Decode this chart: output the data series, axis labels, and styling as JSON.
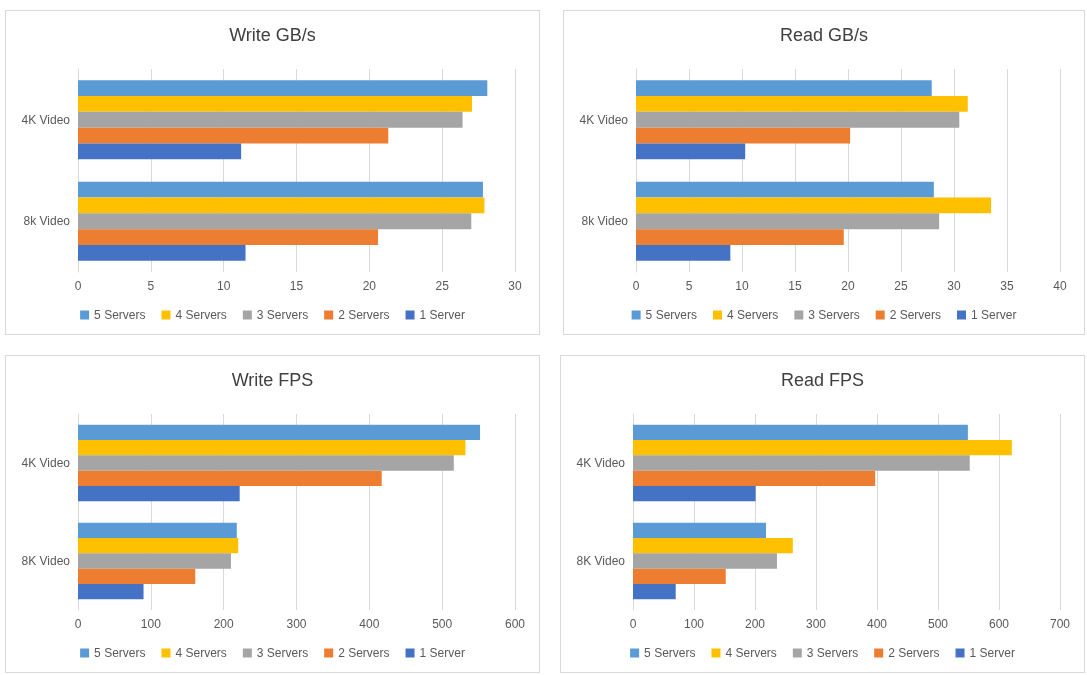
{
  "chart_data": [
    {
      "type": "bar",
      "orientation": "horizontal",
      "title": "Write GB/s",
      "categories": [
        "4K Video",
        "8k Video"
      ],
      "xlim": [
        0,
        30
      ],
      "xticks": [
        0,
        5,
        10,
        15,
        20,
        25,
        30
      ],
      "grid": "x",
      "legend": "bottom",
      "series": [
        {
          "name": "5 Servers",
          "color": "#5b9bd5",
          "values": [
            28.1,
            27.8
          ]
        },
        {
          "name": "4 Servers",
          "color": "#ffc000",
          "values": [
            27.05,
            27.9
          ]
        },
        {
          "name": "3 Servers",
          "color": "#a5a5a5",
          "values": [
            26.4,
            27.0
          ]
        },
        {
          "name": "2 Servers",
          "color": "#ed7d31",
          "values": [
            21.3,
            20.6
          ]
        },
        {
          "name": "1 Server",
          "color": "#4472c4",
          "values": [
            11.2,
            11.5
          ]
        }
      ]
    },
    {
      "type": "bar",
      "orientation": "horizontal",
      "title": "Read GB/s",
      "categories": [
        "4K Video",
        "8k Video"
      ],
      "xlim": [
        0,
        40
      ],
      "xticks": [
        0,
        5,
        10,
        15,
        20,
        25,
        30,
        35,
        40
      ],
      "grid": "x",
      "legend": "bottom",
      "series": [
        {
          "name": "5 Servers",
          "color": "#5b9bd5",
          "values": [
            27.9,
            28.1
          ]
        },
        {
          "name": "4 Servers",
          "color": "#ffc000",
          "values": [
            31.3,
            33.5
          ]
        },
        {
          "name": "3 Servers",
          "color": "#a5a5a5",
          "values": [
            30.5,
            28.6
          ]
        },
        {
          "name": "2 Servers",
          "color": "#ed7d31",
          "values": [
            20.2,
            19.6
          ]
        },
        {
          "name": "1 Server",
          "color": "#4472c4",
          "values": [
            10.3,
            8.9
          ]
        }
      ]
    },
    {
      "type": "bar",
      "orientation": "horizontal",
      "title": "Write FPS",
      "categories": [
        "4K Video",
        "8K Video"
      ],
      "xlim": [
        0,
        600
      ],
      "xticks": [
        0,
        100,
        200,
        300,
        400,
        500,
        600
      ],
      "grid": "x",
      "legend": "bottom",
      "series": [
        {
          "name": "5 Servers",
          "color": "#5b9bd5",
          "values": [
            552,
            218
          ]
        },
        {
          "name": "4 Servers",
          "color": "#ffc000",
          "values": [
            532,
            220
          ]
        },
        {
          "name": "3 Servers",
          "color": "#a5a5a5",
          "values": [
            516,
            210
          ]
        },
        {
          "name": "2 Servers",
          "color": "#ed7d31",
          "values": [
            417,
            161
          ]
        },
        {
          "name": "1 Server",
          "color": "#4472c4",
          "values": [
            222,
            90
          ]
        }
      ]
    },
    {
      "type": "bar",
      "orientation": "horizontal",
      "title": "Read FPS",
      "categories": [
        "4K Video",
        "8K Video"
      ],
      "xlim": [
        0,
        700
      ],
      "xticks": [
        0,
        100,
        200,
        300,
        400,
        500,
        600,
        700
      ],
      "grid": "x",
      "legend": "bottom",
      "series": [
        {
          "name": "5 Servers",
          "color": "#5b9bd5",
          "values": [
            549,
            218
          ]
        },
        {
          "name": "4 Servers",
          "color": "#ffc000",
          "values": [
            621,
            262
          ]
        },
        {
          "name": "3 Servers",
          "color": "#a5a5a5",
          "values": [
            552,
            236
          ]
        },
        {
          "name": "2 Servers",
          "color": "#ed7d31",
          "values": [
            397,
            152
          ]
        },
        {
          "name": "1 Server",
          "color": "#4472c4",
          "values": [
            201,
            70
          ]
        }
      ]
    }
  ]
}
